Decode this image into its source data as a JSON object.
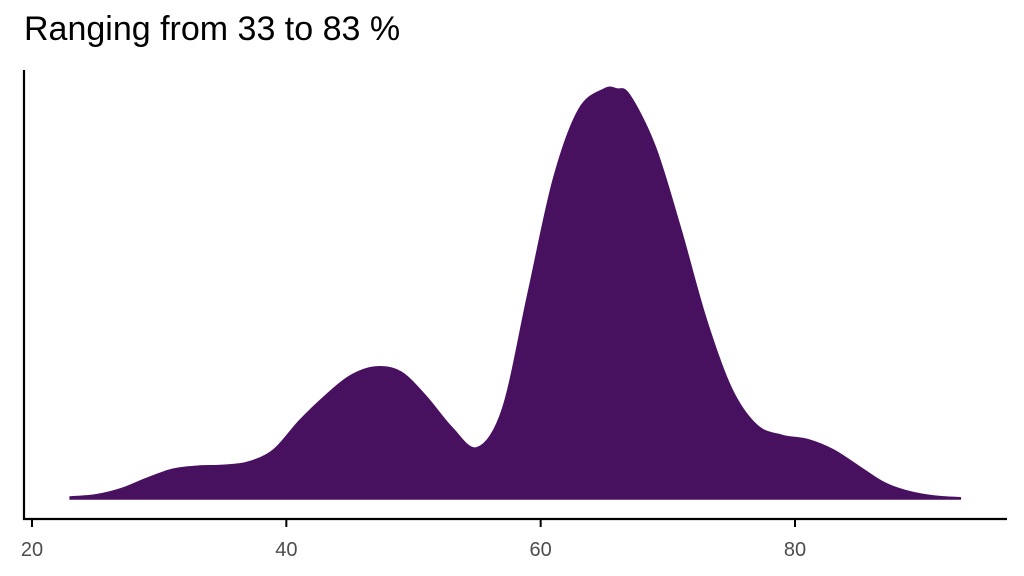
{
  "chart_data": {
    "type": "area",
    "title": "Ranging from 33 to 83 %",
    "xlabel": "",
    "ylabel": "",
    "xlim": [
      19,
      96
    ],
    "ylim": [
      0,
      1
    ],
    "grid": false,
    "x_ticks": [
      20,
      40,
      60,
      80
    ],
    "fill_color": "#481160",
    "density": {
      "x": [
        23,
        25,
        27,
        29,
        31,
        33,
        35,
        37,
        39,
        41,
        43,
        45,
        47,
        49,
        51,
        53,
        55,
        57,
        59,
        61,
        63,
        65,
        66,
        67,
        69,
        71,
        73,
        75,
        77,
        79,
        81,
        83,
        85,
        87,
        89,
        91,
        93
      ],
      "y": [
        0.005,
        0.01,
        0.025,
        0.05,
        0.072,
        0.08,
        0.082,
        0.09,
        0.12,
        0.19,
        0.25,
        0.3,
        0.322,
        0.31,
        0.25,
        0.175,
        0.125,
        0.22,
        0.5,
        0.78,
        0.95,
        1.0,
        1.0,
        0.985,
        0.86,
        0.66,
        0.44,
        0.27,
        0.18,
        0.155,
        0.145,
        0.12,
        0.08,
        0.04,
        0.018,
        0.007,
        0.003
      ]
    }
  }
}
